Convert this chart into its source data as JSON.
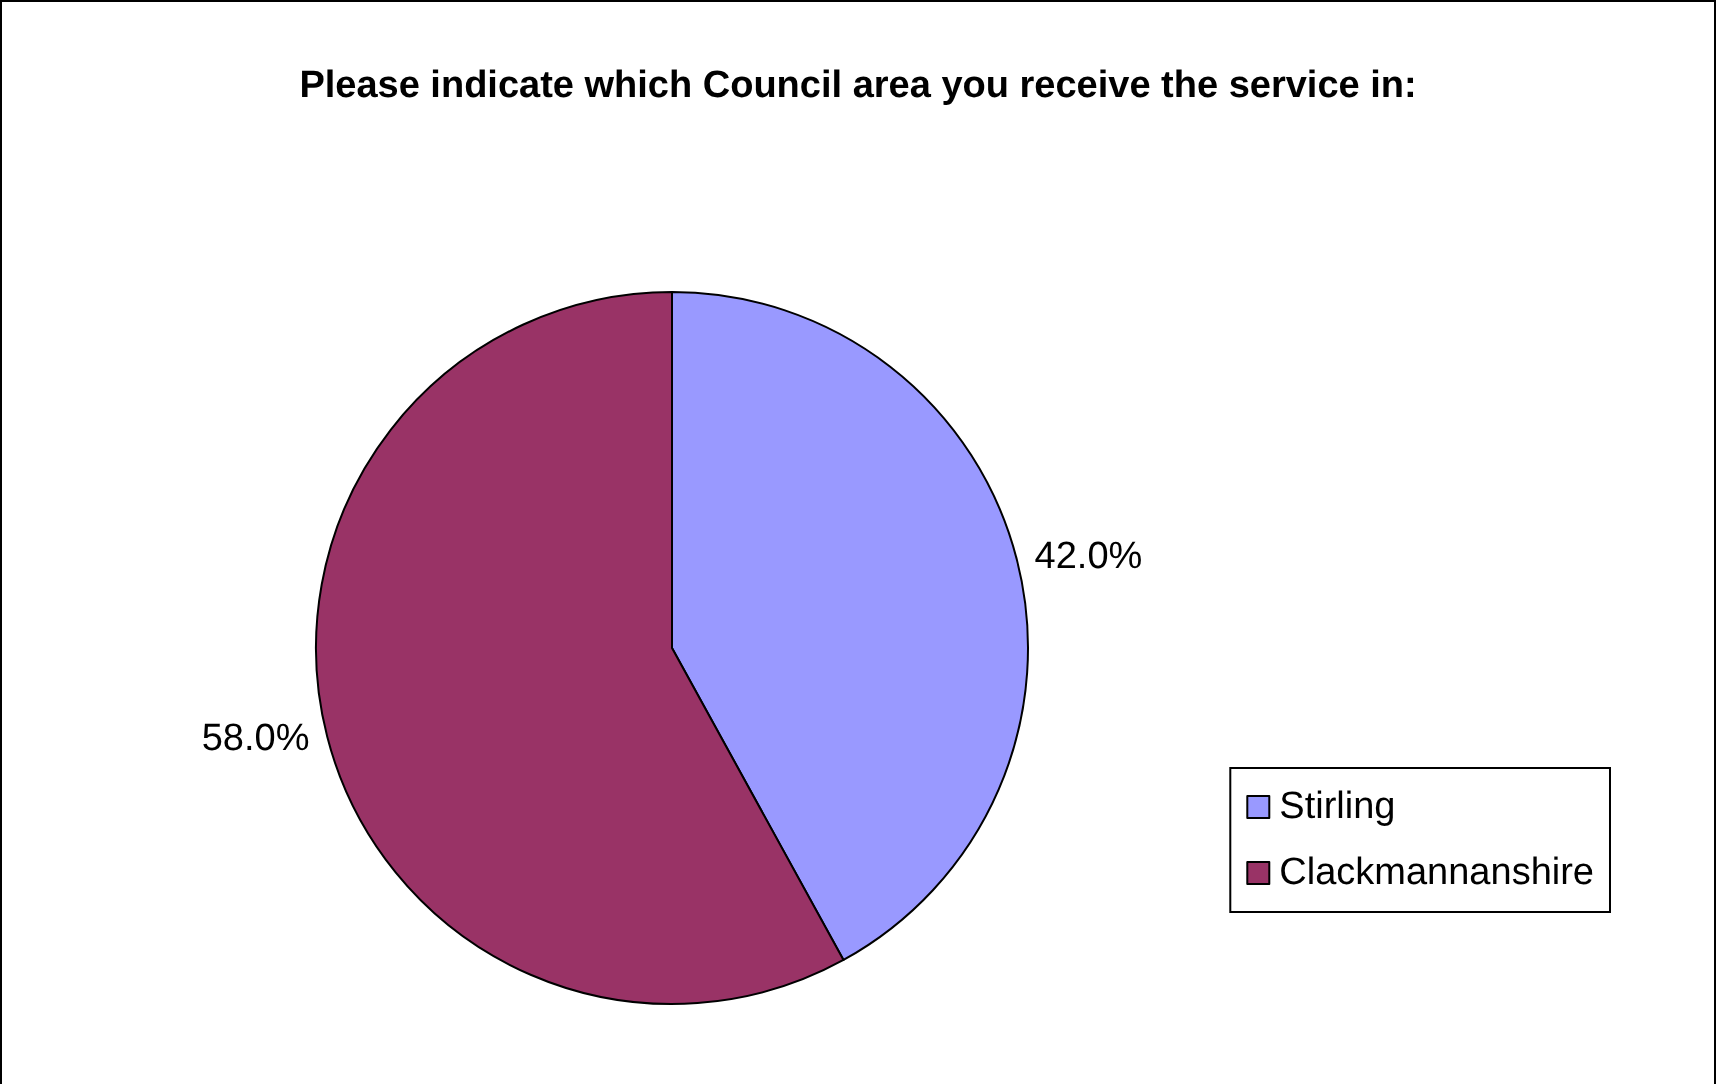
{
  "chart_data": {
    "type": "pie",
    "title": "Please indicate which Council area you receive the service in:",
    "categories": [
      "Stirling",
      "Clackmannanshire"
    ],
    "values": [
      42,
      58
    ],
    "colors": [
      "#9999ff",
      "#993366"
    ],
    "value_labels": [
      "42.0%",
      "58.0%"
    ],
    "legend": "right"
  }
}
